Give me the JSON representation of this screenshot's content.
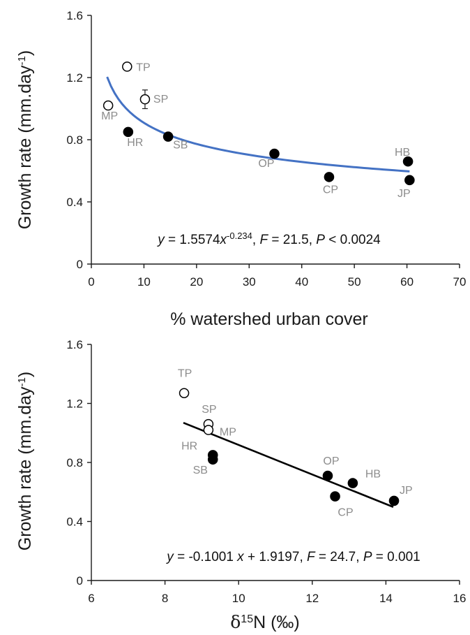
{
  "chart_data": [
    {
      "type": "scatter",
      "xlabel": "% watershed urban cover",
      "ylabel": "Growth rate (mm.day",
      "ylabel_sup": "-1",
      "ylabel_close": ")",
      "xlim": [
        0,
        70
      ],
      "ylim": [
        0,
        1.6
      ],
      "xticks": [
        "0",
        "10",
        "20",
        "30",
        "40",
        "50",
        "60",
        "70"
      ],
      "yticks": [
        "0",
        "0.4",
        "0.8",
        "1.2",
        "1.6"
      ],
      "grid": false,
      "points": [
        {
          "label": "TP",
          "x": 6.8,
          "y": 1.27,
          "filled": false
        },
        {
          "label": "MP",
          "x": 3.2,
          "y": 1.02,
          "filled": false
        },
        {
          "label": "SP",
          "x": 10.2,
          "y": 1.06,
          "filled": false,
          "err": 0.06
        },
        {
          "label": "HR",
          "x": 7.0,
          "y": 0.85,
          "filled": true
        },
        {
          "label": "SB",
          "x": 14.6,
          "y": 0.82,
          "filled": true
        },
        {
          "label": "OP",
          "x": 34.8,
          "y": 0.71,
          "filled": true
        },
        {
          "label": "CP",
          "x": 45.2,
          "y": 0.56,
          "filled": true
        },
        {
          "label": "HB",
          "x": 60.2,
          "y": 0.66,
          "filled": true
        },
        {
          "label": "JP",
          "x": 60.5,
          "y": 0.54,
          "filled": true
        }
      ],
      "fit": {
        "form": "power",
        "a": 1.5574,
        "b": -0.234,
        "x_range": [
          3,
          60.5
        ],
        "color": "#4472C4"
      },
      "equation": {
        "y": "y",
        "part1": " = 1.5574",
        "x": "x",
        "exp": "-0.234",
        "sep1": ", ",
        "F": "F",
        "fval": " = 21.5, ",
        "P": "P",
        "pval": " < 0.0024"
      }
    },
    {
      "type": "scatter",
      "xlabel_delta": "δ",
      "xlabel_sup": "15",
      "xlabel_rest": "N (‰)",
      "ylabel": "Growth rate (mm.day",
      "ylabel_sup": "-1",
      "ylabel_close": ")",
      "xlim": [
        6,
        16
      ],
      "ylim": [
        0,
        1.6
      ],
      "xticks": [
        "6",
        "8",
        "10",
        "12",
        "14",
        "16"
      ],
      "yticks": [
        "0",
        "0.4",
        "0.8",
        "1.2",
        "1.6"
      ],
      "grid": false,
      "points": [
        {
          "label": "TP",
          "x": 8.52,
          "y": 1.27,
          "filled": false
        },
        {
          "label": "SP",
          "x": 9.18,
          "y": 1.06,
          "filled": false
        },
        {
          "label": "MP",
          "x": 9.18,
          "y": 1.02,
          "filled": false
        },
        {
          "label": "HR",
          "x": 9.3,
          "y": 0.85,
          "filled": true
        },
        {
          "label": "SB",
          "x": 9.3,
          "y": 0.82,
          "filled": true
        },
        {
          "label": "OP",
          "x": 12.42,
          "y": 0.71,
          "filled": true
        },
        {
          "label": "CP",
          "x": 12.62,
          "y": 0.57,
          "filled": true
        },
        {
          "label": "HB",
          "x": 13.1,
          "y": 0.66,
          "filled": true
        },
        {
          "label": "JP",
          "x": 14.22,
          "y": 0.54,
          "filled": true
        }
      ],
      "fit": {
        "form": "linear",
        "slope": -0.1001,
        "intercept": 1.9197,
        "x_range": [
          8.5,
          14.2
        ],
        "color": "#000000"
      },
      "equation": {
        "y": "y",
        "part1": " = -0.1001 ",
        "x": "x",
        "part2": " + 1.9197, ",
        "F": "F",
        "fval": " = 24.7, ",
        "P": "P",
        "pval": " = 0.001"
      }
    }
  ]
}
